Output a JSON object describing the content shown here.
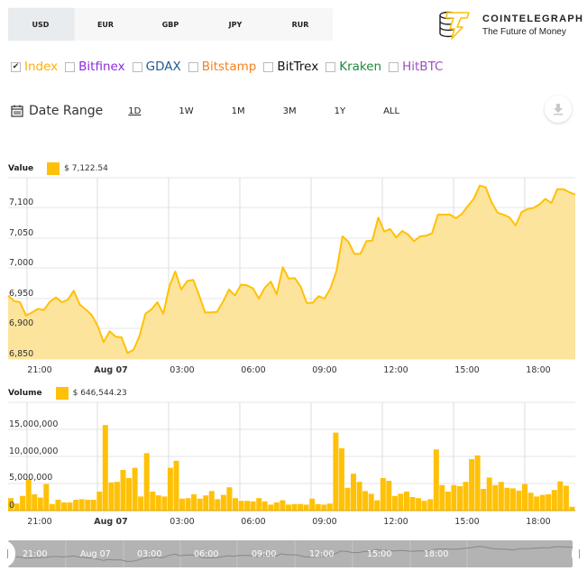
{
  "currency_tabs": [
    {
      "label": "USD",
      "active": true
    },
    {
      "label": "EUR",
      "active": false
    },
    {
      "label": "GBP",
      "active": false
    },
    {
      "label": "JPY",
      "active": false
    },
    {
      "label": "RUR",
      "active": false
    }
  ],
  "brand": {
    "title": "COINTELEGRAPH",
    "tagline": "The Future of Money"
  },
  "exchanges": [
    {
      "label": "Index",
      "checked": true,
      "color": "#ffb000"
    },
    {
      "label": "Bitfinex",
      "checked": false,
      "color": "#8a2be2"
    },
    {
      "label": "GDAX",
      "checked": false,
      "color": "#1f5a96"
    },
    {
      "label": "Bitstamp",
      "checked": false,
      "color": "#f58220"
    },
    {
      "label": "BitTrex",
      "checked": false,
      "color": "#111111"
    },
    {
      "label": "Kraken",
      "checked": false,
      "color": "#1e8a3c"
    },
    {
      "label": "HitBTC",
      "checked": false,
      "color": "#9b4fc0"
    }
  ],
  "date_range": {
    "label": "Date Range",
    "options": [
      "1D",
      "1W",
      "1M",
      "3M",
      "1Y",
      "ALL"
    ],
    "active": "1D"
  },
  "download_icon": "download-icon",
  "accent_color": "#ffc107",
  "fill_color": "#fde397",
  "chart_data": [
    {
      "type": "area",
      "title": "Value",
      "legend": {
        "label": "Value",
        "value": "$ 7,122.54"
      },
      "ylabel": "",
      "xlabel": "",
      "ylim": [
        6840,
        7150
      ],
      "yticks": [
        "7,100",
        "7,050",
        "7,000",
        "6,950",
        "6,900",
        "6,850"
      ],
      "xticks": [
        "21:00",
        "Aug 07",
        "03:00",
        "06:00",
        "09:00",
        "12:00",
        "15:00",
        "18:00"
      ],
      "grid": true,
      "values": [
        6955,
        6946,
        6944,
        6922,
        6927,
        6933,
        6931,
        6945,
        6952,
        6944,
        6948,
        6963,
        6940,
        6932,
        6923,
        6905,
        6878,
        6896,
        6887,
        6886,
        6860,
        6865,
        6888,
        6925,
        6932,
        6944,
        6925,
        6970,
        6995,
        6965,
        6979,
        6981,
        6955,
        6927,
        6927,
        6928,
        6945,
        6965,
        6955,
        6973,
        6972,
        6967,
        6950,
        6968,
        6978,
        6957,
        7002,
        6983,
        6984,
        6970,
        6943,
        6943,
        6954,
        6950,
        6967,
        6996,
        7053,
        7044,
        7024,
        7024,
        7045,
        7046,
        7084,
        7061,
        7065,
        7051,
        7062,
        7056,
        7045,
        7053,
        7054,
        7058,
        7089,
        7089,
        7089,
        7083,
        7090,
        7103,
        7115,
        7137,
        7134,
        7109,
        7092,
        7089,
        7084,
        7071,
        7093,
        7098,
        7100,
        7106,
        7115,
        7108,
        7131,
        7131,
        7126,
        7122
      ]
    },
    {
      "type": "bar",
      "title": "Volume",
      "legend": {
        "label": "Volume",
        "value": "$ 646,544.23"
      },
      "ylim": [
        0,
        18000000
      ],
      "yticks": [
        "15,000,000",
        "10,000,000",
        "5,000,000",
        "0"
      ],
      "xticks": [
        "21:00",
        "Aug 07",
        "03:00",
        "06:00",
        "09:00",
        "12:00",
        "15:00",
        "18:00"
      ],
      "grid": true,
      "values": [
        2300000,
        1300000,
        2700000,
        5800000,
        3000000,
        2400000,
        4900000,
        1200000,
        2000000,
        1500000,
        1500000,
        2000000,
        2100000,
        2000000,
        2000000,
        3500000,
        15800000,
        5200000,
        5300000,
        7500000,
        6000000,
        7900000,
        2600000,
        10600000,
        3500000,
        2800000,
        2600000,
        7900000,
        9200000,
        2200000,
        2300000,
        3000000,
        2200000,
        2800000,
        3600000,
        2100000,
        2900000,
        4300000,
        2300000,
        1800000,
        1800000,
        1700000,
        2300000,
        1700000,
        1100000,
        1500000,
        1900000,
        1100000,
        1200000,
        1200000,
        1100000,
        2200000,
        1200000,
        1100000,
        1300000,
        14400000,
        11500000,
        4200000,
        6800000,
        5300000,
        3600000,
        3100000,
        1900000,
        6000000,
        5500000,
        2700000,
        3100000,
        3500000,
        2500000,
        2300000,
        1800000,
        2100000,
        11300000,
        4700000,
        3500000,
        4700000,
        4500000,
        5300000,
        9500000,
        10200000,
        4000000,
        6100000,
        4700000,
        5300000,
        4200000,
        4100000,
        3700000,
        4900000,
        3300000,
        2600000,
        2900000,
        3000000,
        3800000,
        5400000,
        4600000,
        700000
      ]
    }
  ],
  "navigator": {
    "labels": [
      "21:00",
      "Aug 07",
      "03:00",
      "06:00",
      "09:00",
      "12:00",
      "15:00",
      "18:00"
    ]
  }
}
